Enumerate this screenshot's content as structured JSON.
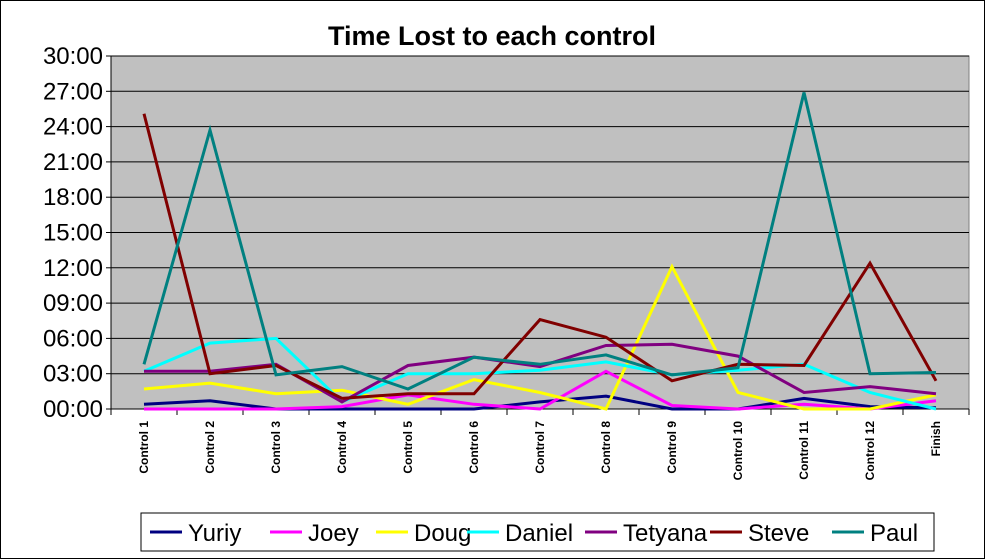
{
  "chart_data": {
    "type": "line",
    "title": "Time Lost to each control",
    "xlabel": "",
    "ylabel": "",
    "categories": [
      "Control 1",
      "Control 2",
      "Control 3",
      "Control 4",
      "Control 5",
      "Control 6",
      "Control 7",
      "Control 8",
      "Control 9",
      "Control 10",
      "Control 11",
      "Control 12",
      "Finish"
    ],
    "y_ticks": [
      "00:00",
      "03:00",
      "06:00",
      "09:00",
      "12:00",
      "15:00",
      "18:00",
      "21:00",
      "24:00",
      "27:00",
      "30:00"
    ],
    "ylim_minutes": [
      0,
      30
    ],
    "grid": true,
    "legend_position": "bottom",
    "plot_background": "#c0c0c0",
    "series": [
      {
        "name": "Yuriy",
        "color": "#000080",
        "values_minutes": [
          0.4,
          0.7,
          0.0,
          0.0,
          0.0,
          0.0,
          0.6,
          1.1,
          0.0,
          0.0,
          0.9,
          0.2,
          0.1
        ]
      },
      {
        "name": "Joey",
        "color": "#ff00ff",
        "values_minutes": [
          0.0,
          0.0,
          0.0,
          0.2,
          1.2,
          0.4,
          0.0,
          3.2,
          0.3,
          0.0,
          0.4,
          0.0,
          0.7
        ]
      },
      {
        "name": "Doug",
        "color": "#ffff00",
        "values_minutes": [
          1.7,
          2.2,
          1.3,
          1.6,
          0.4,
          2.5,
          1.4,
          0.0,
          12.1,
          1.4,
          0.0,
          0.0,
          1.2
        ]
      },
      {
        "name": "Daniel",
        "color": "#00ffff",
        "values_minutes": [
          3.2,
          5.6,
          6.0,
          0.6,
          3.0,
          3.0,
          3.3,
          4.0,
          2.9,
          3.3,
          3.8,
          1.4,
          0.0
        ]
      },
      {
        "name": "Tetyana",
        "color": "#800080",
        "values_minutes": [
          3.2,
          3.2,
          3.8,
          0.6,
          3.7,
          4.4,
          3.6,
          5.4,
          5.5,
          4.5,
          1.4,
          1.9,
          1.3
        ]
      },
      {
        "name": "Steve",
        "color": "#800000",
        "values_minutes": [
          25.1,
          3.0,
          3.7,
          0.9,
          1.3,
          1.3,
          7.6,
          6.1,
          2.4,
          3.8,
          3.7,
          12.4,
          2.4
        ]
      },
      {
        "name": "Paul",
        "color": "#008080",
        "values_minutes": [
          3.8,
          23.7,
          2.9,
          3.6,
          1.7,
          4.4,
          3.8,
          4.6,
          2.9,
          3.5,
          26.9,
          3.0,
          3.1
        ]
      }
    ]
  }
}
